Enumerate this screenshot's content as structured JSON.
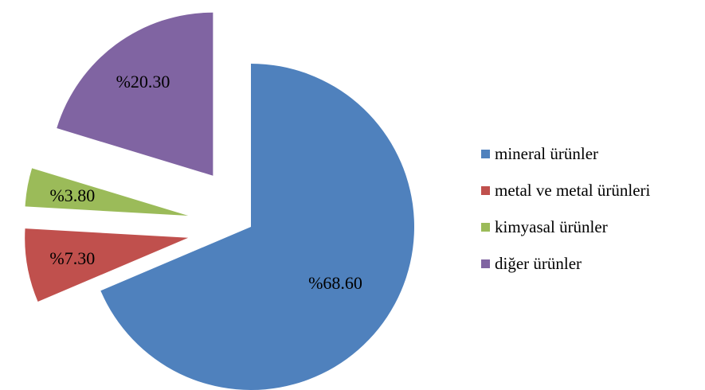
{
  "chart_data": {
    "type": "pie",
    "categories": [
      "mineral ürünler",
      "metal  ve metal ürünleri",
      "kimyasal ürünler",
      "diğer ürünler"
    ],
    "values": [
      68.6,
      7.3,
      3.8,
      20.3
    ],
    "data_labels": [
      "%68.60",
      "%7.30",
      "%3.80",
      "%20.30"
    ],
    "colors": [
      "#4F81BD",
      "#C0504D",
      "#9BBB59",
      "#8064A2"
    ],
    "exploded": [
      false,
      true,
      true,
      true
    ],
    "legend": "right",
    "title": ""
  },
  "legend": {
    "items": [
      {
        "label": "mineral ürünler",
        "color": "#4F81BD"
      },
      {
        "label": " metal  ve metal ürünleri",
        "color": "#C0504D"
      },
      {
        "label": "kimyasal ürünler",
        "color": "#9BBB59"
      },
      {
        "label": "diğer ürünler",
        "color": "#8064A2"
      }
    ]
  }
}
